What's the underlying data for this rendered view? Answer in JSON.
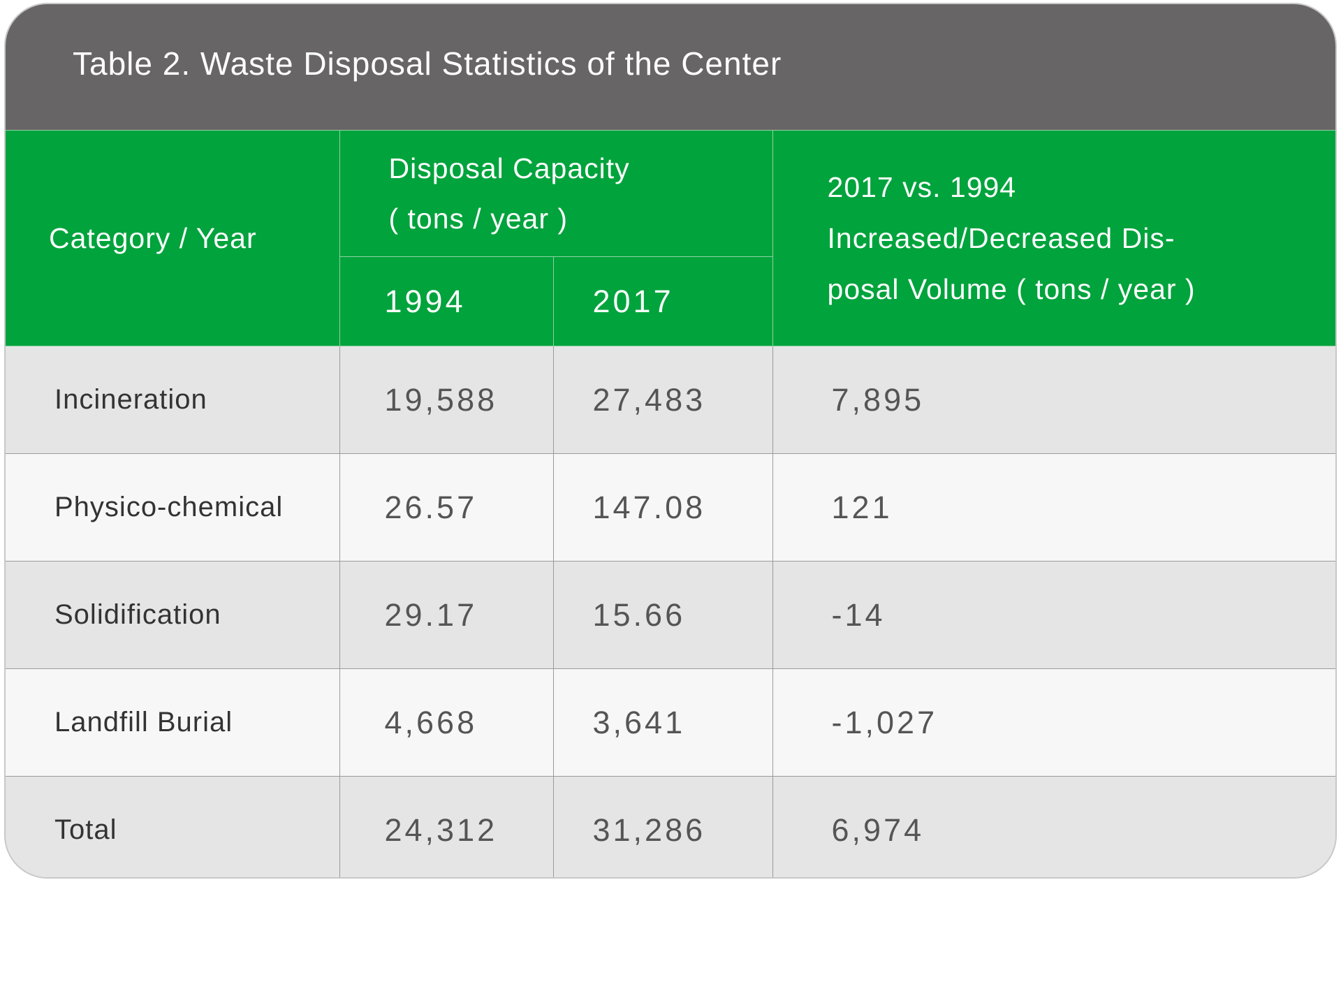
{
  "title": "Table 2. Waste Disposal Statistics of the Center",
  "header": {
    "category_label": "Category / Year",
    "capacity_line1": "Disposal Capacity",
    "capacity_line2": "( tons / year )",
    "year_1994": "1994",
    "year_2017": "2017",
    "diff_line1": "2017 vs. 1994",
    "diff_line2": "Increased/Decreased Dis-",
    "diff_line3": "posal Volume ( tons / year )"
  },
  "rows": [
    {
      "category": "Incineration",
      "v1994": "19,588",
      "v2017": "27,483",
      "diff": "7,895"
    },
    {
      "category": "Physico-chemical",
      "v1994": "26.57",
      "v2017": "147.08",
      "diff": "121"
    },
    {
      "category": "Solidification",
      "v1994": "29.17",
      "v2017": "15.66",
      "diff": "-14"
    },
    {
      "category": "Landfill Burial",
      "v1994": "4,668",
      "v2017": "3,641",
      "diff": "-1,027"
    },
    {
      "category": "Total",
      "v1994": "24,312",
      "v2017": "31,286",
      "diff": "6,974"
    }
  ],
  "colors": {
    "title_bar": "#686566",
    "header_green": "#00a33c",
    "row_dark": "#e5e5e5",
    "row_light": "#f6f7f6"
  }
}
